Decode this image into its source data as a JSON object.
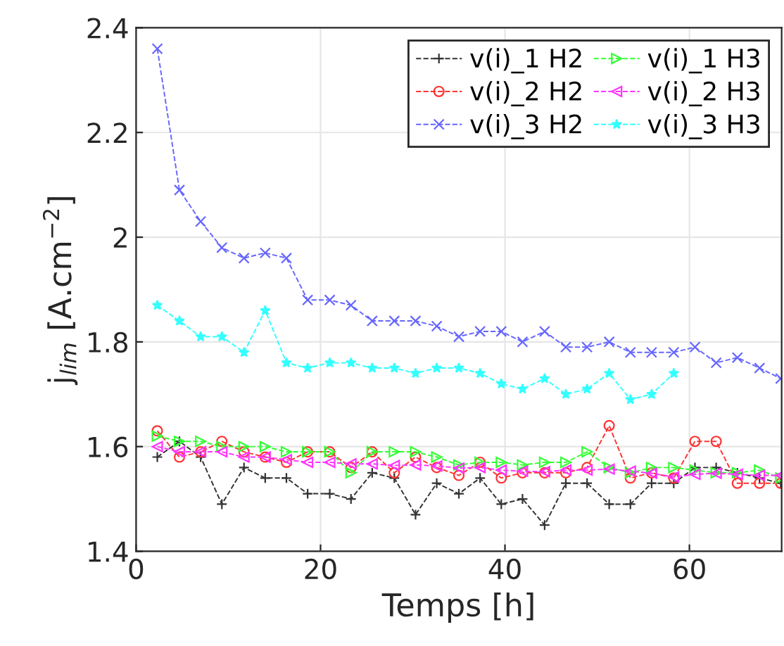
{
  "chart_data": {
    "type": "line",
    "xlabel": "Temps [h]",
    "ylabel": "j$_{lim}$ [A.cm$^{−2}$]",
    "x": [
      2.3,
      4.7,
      7.0,
      9.3,
      11.7,
      14.0,
      16.3,
      18.6,
      21.0,
      23.3,
      25.6,
      28.0,
      30.3,
      32.6,
      35.0,
      37.3,
      39.6,
      41.9,
      44.3,
      46.6,
      48.9,
      51.3,
      53.6,
      55.9,
      58.3,
      60.6,
      62.9,
      65.2,
      67.6,
      69.9
    ],
    "series": [
      {
        "name": "v(i)_1 H2",
        "color": "#333333",
        "marker": "plus",
        "values": [
          1.58,
          1.61,
          1.58,
          1.49,
          1.56,
          1.54,
          1.54,
          1.51,
          1.51,
          1.5,
          1.55,
          1.54,
          1.47,
          1.53,
          1.51,
          1.54,
          1.49,
          1.5,
          1.45,
          1.53,
          1.53,
          1.49,
          1.49,
          1.53,
          1.53,
          1.56,
          1.56,
          1.55,
          1.54,
          1.53
        ]
      },
      {
        "name": "v(i)_2 H2",
        "color": "#ff3333",
        "marker": "circle",
        "values": [
          1.63,
          1.58,
          1.59,
          1.61,
          1.59,
          1.58,
          1.57,
          1.59,
          1.59,
          1.56,
          1.59,
          1.55,
          1.58,
          1.56,
          1.545,
          1.57,
          1.54,
          1.55,
          1.55,
          1.55,
          1.56,
          1.64,
          1.54,
          1.55,
          1.54,
          1.61,
          1.61,
          1.53,
          1.53,
          1.53
        ]
      },
      {
        "name": "v(i)_3 H2",
        "color": "#6666ff",
        "marker": "x",
        "values": [
          2.36,
          2.09,
          2.03,
          1.98,
          1.96,
          1.97,
          1.96,
          1.88,
          1.88,
          1.87,
          1.84,
          1.84,
          1.84,
          1.83,
          1.81,
          1.82,
          1.82,
          1.8,
          1.82,
          1.79,
          1.79,
          1.8,
          1.78,
          1.78,
          1.78,
          1.79,
          1.76,
          1.77,
          1.75,
          1.73
        ]
      },
      {
        "name": "v(i)_1 H3",
        "color": "#33ff33",
        "marker": "triangle-right",
        "values": [
          1.62,
          1.61,
          1.61,
          1.6,
          1.6,
          1.6,
          1.59,
          1.59,
          1.59,
          1.55,
          1.59,
          1.59,
          1.59,
          1.58,
          1.565,
          1.57,
          1.57,
          1.565,
          1.57,
          1.57,
          1.59,
          1.56,
          1.55,
          1.56,
          1.56,
          1.555,
          1.55,
          1.55,
          1.555,
          1.54
        ]
      },
      {
        "name": "v(i)_2 H3",
        "color": "#ff33ff",
        "marker": "triangle-left",
        "values": [
          1.6,
          1.59,
          1.59,
          1.59,
          1.58,
          1.58,
          1.575,
          1.57,
          1.57,
          1.567,
          1.567,
          1.564,
          1.565,
          1.563,
          1.559,
          1.56,
          1.555,
          1.553,
          1.552,
          1.555,
          1.555,
          1.557,
          1.553,
          1.549,
          1.542,
          1.547,
          1.549,
          1.547,
          1.545,
          1.545
        ]
      },
      {
        "name": "v(i)_3 H3",
        "color": "#33ffff",
        "marker": "star",
        "values": [
          1.87,
          1.84,
          1.81,
          1.81,
          1.78,
          1.86,
          1.76,
          1.75,
          1.76,
          1.76,
          1.75,
          1.75,
          1.74,
          1.75,
          1.75,
          1.74,
          1.72,
          1.71,
          1.73,
          1.7,
          1.71,
          1.74,
          1.69,
          1.7,
          1.74,
          null,
          null,
          null,
          null,
          null
        ]
      }
    ],
    "xlim": [
      0,
      70
    ],
    "ylim": [
      1.4,
      2.4
    ],
    "xticks": [
      0,
      20,
      40,
      60
    ],
    "yticks": [
      1.4,
      1.6,
      1.8,
      2,
      2.2,
      2.4
    ],
    "grid": true,
    "legend": "top right",
    "line_style": "dashed"
  }
}
